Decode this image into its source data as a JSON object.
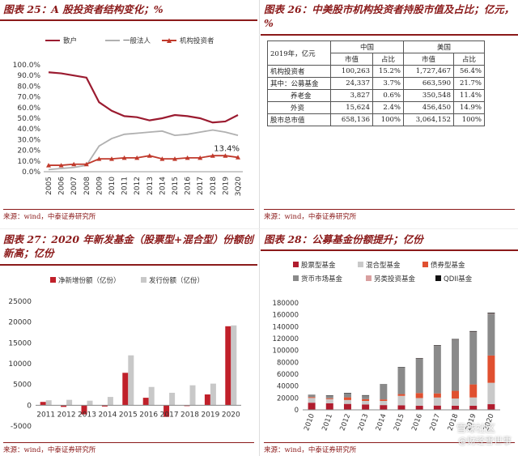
{
  "panels": {
    "p25": {
      "title": "图表 25：A 股投资者结构变化；%",
      "source": "来源：wind，中泰证券研究所"
    },
    "p26": {
      "title": "图表 26：中美股市机构投资者持股市值及占比；亿元，%",
      "source": "来源：wind，中泰证券研究所"
    },
    "p27": {
      "title": "图表 27：2020 年新发基金（股票型+混合型）份额创新高；亿份",
      "source": "来源：wind，中泰证券研究所"
    },
    "p28": {
      "title": "图表 28：公募基金份额提升；亿份",
      "source": "来源：wind，中泰证券研究所"
    }
  },
  "watermark": {
    "line1": "雪球社区",
    "line2": "@财经雪世事"
  },
  "colors": {
    "dark_red": "#8b1a1a",
    "line_red": "#9b1b30",
    "grey": "#b0b0b0",
    "orange": "#c0392b",
    "bar_red": "#c0202a",
    "bar_grey": "#c8c8c8"
  },
  "table26": {
    "header1": [
      "2019年，亿元",
      "中国",
      "",
      "美国",
      ""
    ],
    "header2": [
      "",
      "市值",
      "占比",
      "市值",
      "占比"
    ],
    "rows": [
      [
        "机构投资者",
        "100,263",
        "15.2%",
        "1,727,467",
        "56.4%"
      ],
      [
        "其中：公募基金",
        "24,337",
        "3.7%",
        "663,590",
        "21.7%"
      ],
      [
        "养老金",
        "3,827",
        "0.6%",
        "350,548",
        "11.4%"
      ],
      [
        "外资",
        "15,624",
        "2.4%",
        "456,450",
        "14.9%"
      ],
      [
        "股市总市值",
        "658,136",
        "100%",
        "3,064,152",
        "100%"
      ]
    ]
  },
  "chart_data": [
    {
      "id": "chart25",
      "type": "line",
      "x": [
        "2005",
        "2006",
        "2007",
        "2008",
        "2009",
        "2010",
        "2011",
        "2012",
        "2013",
        "2014",
        "2015",
        "2016",
        "2017",
        "2018",
        "2019",
        "3Q20"
      ],
      "series": [
        {
          "name": "散户",
          "color": "#9b1b30",
          "values": [
            93,
            92,
            90,
            88,
            65,
            57,
            52,
            51,
            48,
            50,
            53,
            52,
            50,
            46,
            47,
            53
          ]
        },
        {
          "name": "一般法人",
          "color": "#b0b0b0",
          "values": [
            2,
            3,
            4,
            6,
            24,
            31,
            35,
            36,
            37,
            38,
            34,
            35,
            37,
            39,
            37,
            34
          ]
        },
        {
          "name": "机构投资者",
          "color": "#c0392b",
          "values": [
            6,
            6,
            7,
            7,
            12,
            12,
            13,
            13,
            15,
            12,
            12,
            13,
            13,
            15,
            15,
            13.4
          ]
        }
      ],
      "annotation": "13.4%",
      "yticks": [
        "0.0%",
        "10.0%",
        "20.0%",
        "30.0%",
        "40.0%",
        "50.0%",
        "60.0%",
        "70.0%",
        "80.0%",
        "90.0%",
        "100.0%"
      ],
      "ylim": [
        0,
        100
      ]
    },
    {
      "id": "chart27",
      "type": "bar",
      "categories": [
        "2011",
        "2012",
        "2013",
        "2014",
        "2015",
        "2016",
        "2017",
        "2018",
        "2019",
        "2020"
      ],
      "series": [
        {
          "name": "净新增份额（亿份）",
          "color": "#c0202a",
          "values": [
            800,
            -400,
            -2200,
            -300,
            7800,
            1800,
            -2800,
            -200,
            2600,
            19000
          ]
        },
        {
          "name": "发行份额（亿份）",
          "color": "#c8c8c8",
          "values": [
            1200,
            1300,
            1100,
            2000,
            12000,
            4400,
            3000,
            4800,
            5200,
            19200
          ]
        }
      ],
      "yticks": [
        "-5000",
        "0",
        "5000",
        "10000",
        "15000",
        "20000",
        "25000"
      ],
      "ylim": [
        -5000,
        25000
      ]
    },
    {
      "id": "chart28",
      "type": "bar",
      "stacked": true,
      "categories": [
        "2010",
        "2011",
        "2012",
        "2013",
        "2014",
        "2015",
        "2016",
        "2017",
        "2018",
        "2019",
        "2020"
      ],
      "series": [
        {
          "name": "股票型基金",
          "color": "#b01c2e",
          "values": [
            12000,
            11000,
            10000,
            9000,
            8000,
            7500,
            6800,
            7200,
            7000,
            6800,
            9500
          ]
        },
        {
          "name": "混合型基金",
          "color": "#c9c9c9",
          "values": [
            8000,
            7000,
            6500,
            6000,
            7000,
            16000,
            13000,
            13500,
            12000,
            14000,
            36000
          ]
        },
        {
          "name": "债券型基金",
          "color": "#e05030",
          "values": [
            1500,
            1500,
            4500,
            3000,
            2500,
            3000,
            8500,
            7000,
            13000,
            22000,
            46000
          ]
        },
        {
          "name": "货币市场基金",
          "color": "#8a8a8a",
          "values": [
            3000,
            4500,
            7000,
            6000,
            25000,
            45000,
            58000,
            80000,
            86000,
            88000,
            70000
          ]
        },
        {
          "name": "另类投资基金",
          "color": "#d9a0a0",
          "values": [
            0,
            0,
            0,
            0,
            0,
            0,
            200,
            300,
            300,
            500,
            600
          ]
        },
        {
          "name": "QDII基金",
          "color": "#111111",
          "values": [
            600,
            600,
            600,
            700,
            600,
            600,
            700,
            900,
            900,
            1200,
            1300
          ]
        }
      ],
      "yticks": [
        "0",
        "20000",
        "40000",
        "60000",
        "80000",
        "100000",
        "120000",
        "140000",
        "160000",
        "180000"
      ],
      "ylim": [
        0,
        180000
      ]
    }
  ]
}
